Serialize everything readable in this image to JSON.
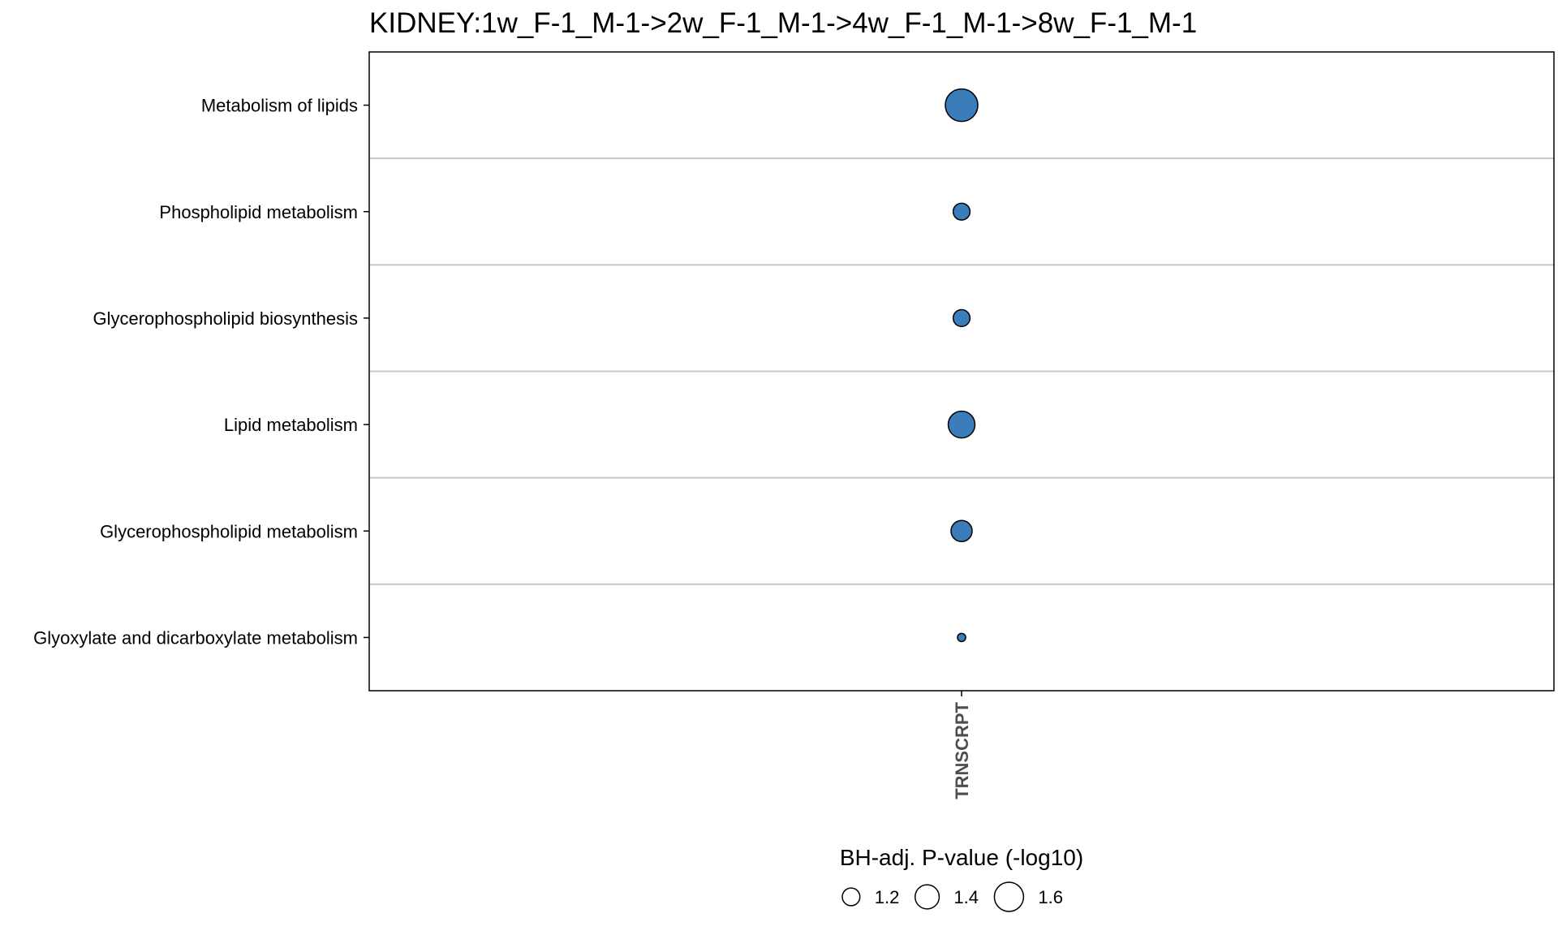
{
  "chart_data": {
    "type": "scatter",
    "title": "KIDNEY:1w_F-1_M-1->2w_F-1_M-1->4w_F-1_M-1->8w_F-1_M-1",
    "xlabel": "",
    "ylabel": "",
    "categories_x": [
      "TRNSCRPT"
    ],
    "categories_y": [
      "Metabolism of lipids",
      "Phospholipid metabolism",
      "Glycerophospholipid biosynthesis",
      "Lipid metabolism",
      "Glycerophospholipid metabolism",
      "Glyoxylate and dicarboxylate metabolism"
    ],
    "points": [
      {
        "x": "TRNSCRPT",
        "y": "Metabolism of lipids",
        "size_value": 1.75
      },
      {
        "x": "TRNSCRPT",
        "y": "Phospholipid metabolism",
        "size_value": 1.18
      },
      {
        "x": "TRNSCRPT",
        "y": "Glycerophospholipid biosynthesis",
        "size_value": 1.18
      },
      {
        "x": "TRNSCRPT",
        "y": "Lipid metabolism",
        "size_value": 1.5
      },
      {
        "x": "TRNSCRPT",
        "y": "Glycerophospholipid metabolism",
        "size_value": 1.3
      },
      {
        "x": "TRNSCRPT",
        "y": "Glyoxylate and dicarboxylate metabolism",
        "size_value": 1.02
      }
    ],
    "legend": {
      "title": "BH-adj. P-value (-log10)",
      "placement": "bottom",
      "entries": [
        {
          "label": "1.2",
          "value": 1.2
        },
        {
          "label": "1.4",
          "value": 1.4
        },
        {
          "label": "1.6",
          "value": 1.6
        }
      ]
    },
    "colors": {
      "point_fill": "#3a7dba",
      "point_stroke": "#000000",
      "grid": "#c8c8c8",
      "frame": "#000000"
    },
    "grid": true
  }
}
